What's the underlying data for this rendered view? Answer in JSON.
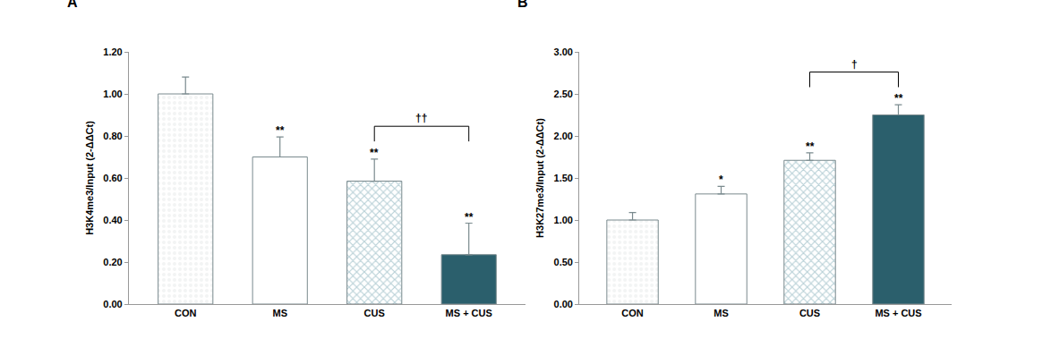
{
  "chart_data": [
    {
      "type": "bar",
      "panel": "A",
      "y_label": "H3K4me3/Input (2-ΔΔCt)",
      "categories": [
        "CON",
        "MS",
        "CUS",
        "MS + CUS"
      ],
      "values": [
        1.0,
        0.7,
        0.585,
        0.235
      ],
      "errors": [
        0.08,
        0.095,
        0.105,
        0.15
      ],
      "colors": [
        "#f2f4f4",
        "#ffffff",
        "#b9d1d7",
        "#2b5f6c"
      ],
      "significance": [
        null,
        "**",
        "**",
        "**"
      ],
      "comparison": {
        "between": [
          "CUS",
          "MS + CUS"
        ],
        "label": "††"
      },
      "ylim": [
        0,
        1.2
      ],
      "yticks": [
        {
          "value": 0,
          "label": "0.00"
        },
        {
          "value": 0.2,
          "label": "0.20"
        },
        {
          "value": 0.4,
          "label": "0.40"
        },
        {
          "value": 0.6,
          "label": "0.60"
        },
        {
          "value": 0.8,
          "label": "0.80"
        },
        {
          "value": 1.0,
          "label": "1.00"
        },
        {
          "value": 1.2,
          "label": "1.20"
        }
      ],
      "grid": false
    },
    {
      "type": "bar",
      "panel": "B",
      "y_label": "H3K27me3/Input (2-ΔΔCt)",
      "categories": [
        "CON",
        "MS",
        "CUS",
        "MS + CUS"
      ],
      "values": [
        1.0,
        1.31,
        1.71,
        2.25
      ],
      "errors": [
        0.09,
        0.09,
        0.09,
        0.12
      ],
      "colors": [
        "#f2f4f4",
        "#ffffff",
        "#b9d1d7",
        "#2b5f6c"
      ],
      "significance": [
        null,
        "*",
        "**",
        "**"
      ],
      "comparison": {
        "between": [
          "CUS",
          "MS + CUS"
        ],
        "label": "†"
      },
      "ylim": [
        0,
        3.0
      ],
      "yticks": [
        {
          "value": 0,
          "label": "0.00"
        },
        {
          "value": 0.5,
          "label": "0.50"
        },
        {
          "value": 1.0,
          "label": "1.00"
        },
        {
          "value": 1.5,
          "label": "1.50"
        },
        {
          "value": 2.0,
          "label": "2.00"
        },
        {
          "value": 2.5,
          "label": "2.50"
        },
        {
          "value": 3.0,
          "label": "3.00"
        }
      ],
      "grid": false
    }
  ]
}
